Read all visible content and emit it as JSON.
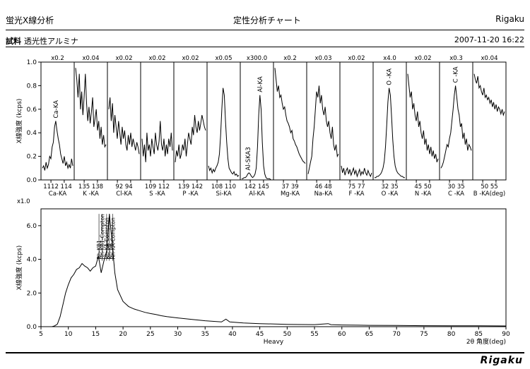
{
  "header": {
    "app_title": "蛍光X線分析",
    "chart_title": "定性分析チャート",
    "brand": "Rigaku",
    "sample_label": "試料",
    "sample_name": "透光性アルミナ",
    "datetime": "2007-11-20 16:22"
  },
  "footer": {
    "logo": "Rigaku"
  },
  "chart_data": [
    {
      "type": "line",
      "ylabel": "X線強度 (kcps)",
      "ylim": [
        0,
        1.0
      ],
      "yticks": [
        "0.0",
        "0.2",
        "0.4",
        "0.6",
        "0.8",
        "1.0"
      ],
      "panels": [
        {
          "name": "Ca-KA",
          "scale": "x0.2",
          "ticks": [
            "112",
            "114"
          ],
          "tick_prefix": "1",
          "peak_label": "Ca-KA",
          "profile": [
            0.1,
            0.12,
            0.08,
            0.15,
            0.1,
            0.13,
            0.2,
            0.18,
            0.28,
            0.32,
            0.45,
            0.5,
            0.42,
            0.35,
            0.3,
            0.22,
            0.18,
            0.14,
            0.2,
            0.12,
            0.15,
            0.1,
            0.13,
            0.1,
            0.18,
            0.12
          ]
        },
        {
          "name": "K -KA",
          "scale": "x0.04",
          "ticks": [
            "135",
            "138"
          ],
          "profile": [
            0.95,
            0.85,
            0.7,
            0.9,
            0.6,
            0.75,
            0.55,
            0.7,
            0.9,
            0.65,
            0.5,
            0.62,
            0.48,
            0.58,
            0.7,
            0.45,
            0.52,
            0.6,
            0.42,
            0.5,
            0.35,
            0.45,
            0.3,
            0.38,
            0.28,
            0.3
          ]
        },
        {
          "name": "Cl-KA",
          "scale": "x0.02",
          "ticks": [
            "92",
            "94"
          ],
          "profile": [
            0.6,
            0.7,
            0.5,
            0.65,
            0.4,
            0.55,
            0.45,
            0.35,
            0.5,
            0.4,
            0.3,
            0.45,
            0.35,
            0.42,
            0.3,
            0.25,
            0.38,
            0.3,
            0.4,
            0.28,
            0.35,
            0.3,
            0.25,
            0.32,
            0.28,
            0.22
          ]
        },
        {
          "name": "S -KA",
          "scale": "x0.02",
          "ticks": [
            "109",
            "112"
          ],
          "profile": [
            0.35,
            0.2,
            0.3,
            0.15,
            0.4,
            0.25,
            0.3,
            0.2,
            0.35,
            0.28,
            0.22,
            0.4,
            0.3,
            0.25,
            0.33,
            0.5,
            0.3,
            0.25,
            0.35,
            0.2,
            0.3,
            0.22,
            0.35,
            0.28,
            0.4,
            0.25
          ]
        },
        {
          "name": "P -KA",
          "scale": "x0.02",
          "ticks": [
            "139",
            "142"
          ],
          "profile": [
            0.15,
            0.25,
            0.2,
            0.3,
            0.18,
            0.22,
            0.3,
            0.25,
            0.35,
            0.2,
            0.3,
            0.4,
            0.35,
            0.3,
            0.45,
            0.38,
            0.55,
            0.45,
            0.4,
            0.5,
            0.42,
            0.48,
            0.55,
            0.5,
            0.45,
            0.42
          ]
        },
        {
          "name": "Si-KA",
          "scale": "x0.05",
          "ticks": [
            "108",
            "110"
          ],
          "profile": [
            0.12,
            0.08,
            0.1,
            0.06,
            0.09,
            0.07,
            0.1,
            0.12,
            0.15,
            0.22,
            0.38,
            0.6,
            0.78,
            0.72,
            0.5,
            0.32,
            0.18,
            0.1,
            0.08,
            0.06,
            0.05,
            0.07,
            0.04,
            0.05,
            0.03,
            0.04
          ]
        },
        {
          "name": "Al-KA",
          "scale": "x300.0",
          "ticks": [
            "142",
            "145"
          ],
          "peak_label": "Al-KA",
          "peak2_label": "Al-SKA3",
          "profile": [
            0.01,
            0.01,
            0.02,
            0.02,
            0.03,
            0.05,
            0.06,
            0.05,
            0.03,
            0.02,
            0.03,
            0.05,
            0.1,
            0.28,
            0.55,
            0.72,
            0.6,
            0.32,
            0.12,
            0.05,
            0.02,
            0.01,
            0.01,
            0.01,
            0.0,
            0.0
          ]
        },
        {
          "name": "Mg-KA",
          "scale": "x0.2",
          "ticks": [
            "37",
            "39"
          ],
          "profile": [
            0.95,
            0.85,
            0.75,
            0.8,
            0.7,
            0.72,
            0.65,
            0.6,
            0.62,
            0.55,
            0.5,
            0.48,
            0.45,
            0.4,
            0.42,
            0.35,
            0.33,
            0.3,
            0.28,
            0.25,
            0.22,
            0.2,
            0.18,
            0.16,
            0.15,
            0.14
          ]
        },
        {
          "name": "Na-KA",
          "scale": "x0.03",
          "ticks": [
            "46",
            "48"
          ],
          "profile": [
            0.05,
            0.1,
            0.15,
            0.2,
            0.35,
            0.45,
            0.6,
            0.75,
            0.7,
            0.8,
            0.65,
            0.72,
            0.6,
            0.55,
            0.62,
            0.5,
            0.45,
            0.5,
            0.4,
            0.35,
            0.45,
            0.3,
            0.25,
            0.3,
            0.2,
            0.22
          ]
        },
        {
          "name": "F -KA",
          "scale": "x0.02",
          "ticks": [
            "75",
            "77"
          ],
          "profile": [
            0.12,
            0.06,
            0.1,
            0.04,
            0.08,
            0.1,
            0.05,
            0.09,
            0.04,
            0.07,
            0.1,
            0.05,
            0.08,
            0.03,
            0.06,
            0.09,
            0.04,
            0.07,
            0.05,
            0.1,
            0.06,
            0.04,
            0.08,
            0.05,
            0.03,
            0.06
          ]
        },
        {
          "name": "O -KA",
          "scale": "x4.0",
          "ticks": [
            "32",
            "35"
          ],
          "peak_label": "O -KA",
          "profile": [
            0.02,
            0.02,
            0.03,
            0.03,
            0.04,
            0.05,
            0.07,
            0.1,
            0.16,
            0.28,
            0.46,
            0.66,
            0.78,
            0.72,
            0.54,
            0.34,
            0.2,
            0.12,
            0.08,
            0.06,
            0.05,
            0.04,
            0.03,
            0.03,
            0.02,
            0.02
          ]
        },
        {
          "name": "N -KA",
          "scale": "x0.02",
          "ticks": [
            "45",
            "50"
          ],
          "profile": [
            0.9,
            0.8,
            0.7,
            0.75,
            0.6,
            0.65,
            0.55,
            0.5,
            0.58,
            0.45,
            0.5,
            0.4,
            0.35,
            0.42,
            0.3,
            0.35,
            0.25,
            0.3,
            0.22,
            0.28,
            0.2,
            0.25,
            0.18,
            0.22,
            0.15,
            0.18
          ]
        },
        {
          "name": "C -KA",
          "scale": "x0.3",
          "ticks": [
            "30",
            "35"
          ],
          "peak_label": "C -KA",
          "profile": [
            0.1,
            0.12,
            0.15,
            0.2,
            0.25,
            0.3,
            0.28,
            0.35,
            0.4,
            0.5,
            0.6,
            0.72,
            0.8,
            0.7,
            0.6,
            0.55,
            0.45,
            0.48,
            0.35,
            0.4,
            0.3,
            0.35,
            0.25,
            0.3,
            0.28,
            0.25
          ]
        },
        {
          "name": "B -KA(deg)",
          "scale": "x0.04",
          "ticks": [
            "50",
            "55"
          ],
          "profile": [
            0.9,
            0.85,
            0.82,
            0.88,
            0.78,
            0.8,
            0.75,
            0.72,
            0.78,
            0.7,
            0.72,
            0.68,
            0.7,
            0.65,
            0.68,
            0.62,
            0.66,
            0.6,
            0.64,
            0.58,
            0.62,
            0.6,
            0.56,
            0.6,
            0.55,
            0.58
          ]
        }
      ]
    },
    {
      "type": "line",
      "scale": "x1.0",
      "xlabel": "Heavy",
      "xlabel_right": "2θ 角度(deg)",
      "ylabel": "X線強度 (kcps)",
      "xlim": [
        5,
        90
      ],
      "ylim": [
        0,
        7.0
      ],
      "xticks": [
        5,
        10,
        15,
        20,
        25,
        30,
        35,
        40,
        45,
        50,
        55,
        60,
        65,
        70,
        75,
        80,
        85,
        90
      ],
      "yticks": [
        "0.0",
        "2.0",
        "4.0",
        "6.0"
      ],
      "peak_labels": [
        {
          "text": "Rh-KB1",
          "x": 15.6
        },
        {
          "text": "Rh-KB1-Compton",
          "x": 16.2
        },
        {
          "text": "Rh-KA-Compton",
          "x": 17.0
        },
        {
          "text": "Rh-KA",
          "x": 17.5
        },
        {
          "text": "Rh-KA-Compton",
          "x": 18.1
        }
      ],
      "points": [
        [
          5,
          0.0
        ],
        [
          7,
          0.0
        ],
        [
          7.5,
          0.05
        ],
        [
          8,
          0.15
        ],
        [
          8.5,
          0.6
        ],
        [
          9,
          1.3
        ],
        [
          9.5,
          2.0
        ],
        [
          10,
          2.5
        ],
        [
          10.5,
          2.9
        ],
        [
          11,
          3.1
        ],
        [
          11.5,
          3.4
        ],
        [
          12,
          3.5
        ],
        [
          12.5,
          3.75
        ],
        [
          13,
          3.6
        ],
        [
          13.5,
          3.5
        ],
        [
          14,
          3.3
        ],
        [
          14.5,
          3.5
        ],
        [
          15,
          3.6
        ],
        [
          15.5,
          4.2
        ],
        [
          16,
          3.2
        ],
        [
          16.5,
          3.9
        ],
        [
          17,
          4.5
        ],
        [
          17.5,
          6.7
        ],
        [
          18,
          5.0
        ],
        [
          18.5,
          3.2
        ],
        [
          19,
          2.2
        ],
        [
          20,
          1.5
        ],
        [
          21,
          1.2
        ],
        [
          22,
          1.05
        ],
        [
          23,
          0.95
        ],
        [
          24,
          0.85
        ],
        [
          25,
          0.78
        ],
        [
          26,
          0.72
        ],
        [
          27,
          0.65
        ],
        [
          28,
          0.6
        ],
        [
          30,
          0.52
        ],
        [
          32,
          0.45
        ],
        [
          35,
          0.35
        ],
        [
          38,
          0.28
        ],
        [
          38.8,
          0.45
        ],
        [
          39.5,
          0.28
        ],
        [
          42,
          0.22
        ],
        [
          45,
          0.18
        ],
        [
          50,
          0.14
        ],
        [
          55,
          0.12
        ],
        [
          57.5,
          0.18
        ],
        [
          58,
          0.12
        ],
        [
          60,
          0.1
        ],
        [
          65,
          0.08
        ],
        [
          70,
          0.07
        ],
        [
          75,
          0.06
        ],
        [
          80,
          0.05
        ],
        [
          85,
          0.05
        ],
        [
          90,
          0.04
        ]
      ]
    }
  ]
}
